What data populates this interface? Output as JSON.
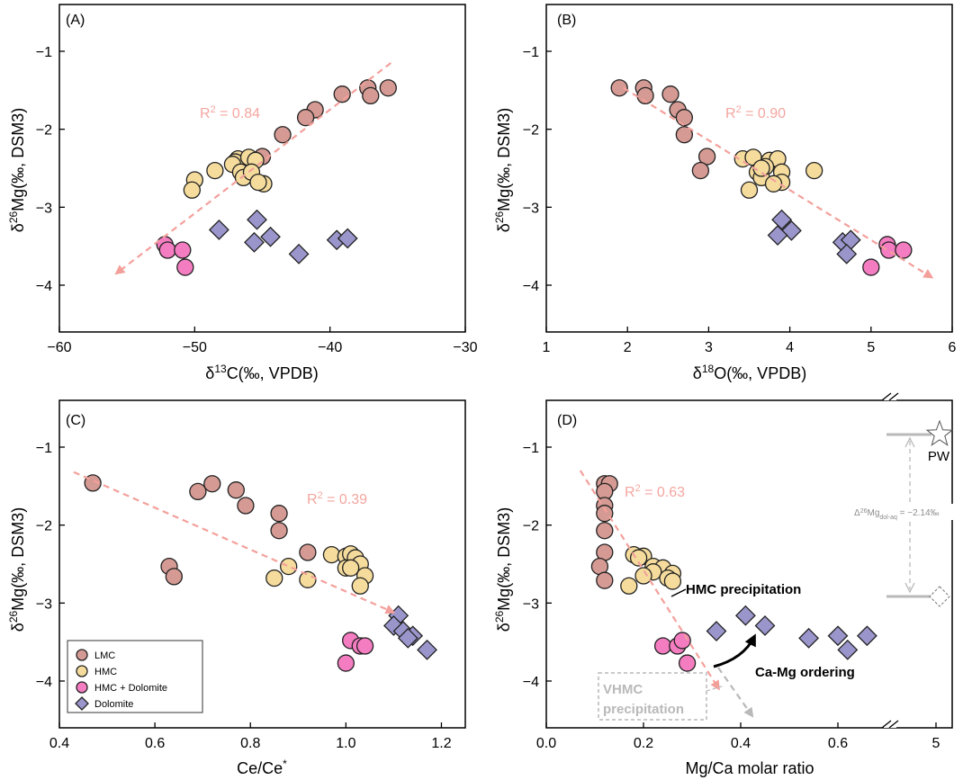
{
  "colors": {
    "LMC": "#d49a93",
    "HMC": "#f5dc9c",
    "HMC + Dolomite": "#f47dc1",
    "Dolomite": "#9a96cc",
    "trend": "#f3a09b",
    "grey": "#b9b9b9"
  },
  "legend": {
    "entries": [
      {
        "name": "LMC",
        "marker": "circle"
      },
      {
        "name": "HMC",
        "marker": "circle"
      },
      {
        "name": "HMC + Dolomite",
        "marker": "circle"
      },
      {
        "name": "Dolomite",
        "marker": "diamond"
      }
    ]
  },
  "chart_data": [
    {
      "panel": "(A)",
      "type": "scatter",
      "xlabel": "δ13C(‰, VPDB)",
      "ylabel": "δ26Mg(‰, DSM3)",
      "xlim": [
        -60,
        -30
      ],
      "ylim": [
        -4.6,
        -0.4
      ],
      "xticks": [
        -60,
        -50,
        -40,
        -30
      ],
      "yticks": [
        -4,
        -3,
        -2,
        -1
      ],
      "r2": "R2 = 0.84",
      "trend": {
        "from": [
          -35.5,
          -1.15
        ],
        "to": [
          -55.8,
          -3.85
        ],
        "arrow": "end"
      },
      "series": [
        {
          "name": "LMC",
          "points": [
            [
              -35.7,
              -1.47
            ],
            [
              -37.2,
              -1.47
            ],
            [
              -37.0,
              -1.57
            ],
            [
              -39.1,
              -1.55
            ],
            [
              -41.1,
              -1.75
            ],
            [
              -41.8,
              -1.85
            ],
            [
              -43.5,
              -2.07
            ],
            [
              -45.0,
              -2.35
            ]
          ]
        },
        {
          "name": "HMC",
          "points": [
            [
              -46.8,
              -2.38
            ],
            [
              -47.0,
              -2.42
            ],
            [
              -46.0,
              -2.36
            ],
            [
              -45.5,
              -2.4
            ],
            [
              -47.2,
              -2.45
            ],
            [
              -46.6,
              -2.55
            ],
            [
              -46.4,
              -2.62
            ],
            [
              -45.8,
              -2.55
            ],
            [
              -48.5,
              -2.53
            ],
            [
              -50.0,
              -2.65
            ],
            [
              -50.2,
              -2.78
            ],
            [
              -44.9,
              -2.7
            ],
            [
              -45.3,
              -2.68
            ]
          ]
        },
        {
          "name": "HMC + Dolomite",
          "points": [
            [
              -52.2,
              -3.48
            ],
            [
              -52.0,
              -3.55
            ],
            [
              -50.9,
              -3.55
            ],
            [
              -50.7,
              -3.77
            ]
          ]
        },
        {
          "name": "Dolomite",
          "points": [
            [
              -48.2,
              -3.29
            ],
            [
              -45.4,
              -3.16
            ],
            [
              -45.6,
              -3.45
            ],
            [
              -44.4,
              -3.38
            ],
            [
              -42.3,
              -3.6
            ],
            [
              -39.5,
              -3.42
            ],
            [
              -38.7,
              -3.4
            ]
          ]
        }
      ]
    },
    {
      "panel": "(B)",
      "type": "scatter",
      "xlabel": "δ18O(‰, VPDB)",
      "ylabel": "δ26Mg(‰, DSM3)",
      "xlim": [
        1,
        6
      ],
      "ylim": [
        -4.6,
        -0.4
      ],
      "xticks": [
        1,
        2,
        3,
        4,
        5,
        6
      ],
      "yticks": [
        -4,
        -3,
        -2,
        -1
      ],
      "r2": "R2 = 0.90",
      "trend": {
        "from": [
          1.95,
          -1.47
        ],
        "to": [
          5.75,
          -3.9
        ],
        "arrow": "end"
      },
      "series": [
        {
          "name": "LMC",
          "points": [
            [
              1.9,
              -1.47
            ],
            [
              2.2,
              -1.47
            ],
            [
              2.22,
              -1.57
            ],
            [
              2.53,
              -1.55
            ],
            [
              2.62,
              -1.75
            ],
            [
              2.7,
              -1.85
            ],
            [
              2.7,
              -2.07
            ],
            [
              2.98,
              -2.35
            ],
            [
              2.9,
              -2.53
            ]
          ]
        },
        {
          "name": "HMC",
          "points": [
            [
              3.42,
              -2.38
            ],
            [
              3.55,
              -2.36
            ],
            [
              3.75,
              -2.4
            ],
            [
              3.85,
              -2.38
            ],
            [
              3.7,
              -2.48
            ],
            [
              3.6,
              -2.55
            ],
            [
              3.65,
              -2.62
            ],
            [
              3.9,
              -2.55
            ],
            [
              4.3,
              -2.53
            ],
            [
              3.9,
              -2.68
            ],
            [
              3.8,
              -2.7
            ],
            [
              3.5,
              -2.78
            ],
            [
              3.65,
              -2.5
            ]
          ]
        },
        {
          "name": "HMC + Dolomite",
          "points": [
            [
              5.2,
              -3.48
            ],
            [
              5.22,
              -3.55
            ],
            [
              5.4,
              -3.55
            ],
            [
              5.0,
              -3.77
            ]
          ]
        },
        {
          "name": "Dolomite",
          "points": [
            [
              3.9,
              -3.16
            ],
            [
              4.02,
              -3.3
            ],
            [
              3.85,
              -3.36
            ],
            [
              4.65,
              -3.45
            ],
            [
              4.75,
              -3.42
            ],
            [
              4.7,
              -3.6
            ]
          ]
        }
      ]
    },
    {
      "panel": "(C)",
      "type": "scatter",
      "xlabel": "Ce/Ce*",
      "ylabel": "δ26Mg(‰, DSM3)",
      "xlim": [
        0.4,
        1.25
      ],
      "ylim": [
        -4.6,
        -0.4
      ],
      "xticks": [
        0.4,
        0.6,
        0.8,
        1.0,
        1.2
      ],
      "yticks": [
        -4,
        -3,
        -2,
        -1
      ],
      "r2": "R2 = 0.39",
      "trend": {
        "from": [
          0.43,
          -1.32
        ],
        "to": [
          1.1,
          -3.12
        ],
        "arrow": "end"
      },
      "series": [
        {
          "name": "LMC",
          "points": [
            [
              0.47,
              -1.46
            ],
            [
              0.69,
              -1.57
            ],
            [
              0.72,
              -1.47
            ],
            [
              0.77,
              -1.55
            ],
            [
              0.79,
              -1.75
            ],
            [
              0.86,
              -1.85
            ],
            [
              0.86,
              -2.07
            ],
            [
              0.92,
              -2.35
            ],
            [
              0.63,
              -2.53
            ],
            [
              0.64,
              -2.66
            ]
          ]
        },
        {
          "name": "HMC",
          "points": [
            [
              0.97,
              -2.38
            ],
            [
              1.0,
              -2.4
            ],
            [
              1.01,
              -2.37
            ],
            [
              1.02,
              -2.42
            ],
            [
              1.0,
              -2.55
            ],
            [
              1.03,
              -2.5
            ],
            [
              1.01,
              -2.55
            ],
            [
              1.04,
              -2.65
            ],
            [
              1.03,
              -2.78
            ],
            [
              0.92,
              -2.7
            ],
            [
              0.88,
              -2.53
            ],
            [
              0.85,
              -2.68
            ]
          ]
        },
        {
          "name": "HMC + Dolomite",
          "points": [
            [
              1.01,
              -3.48
            ],
            [
              1.03,
              -3.55
            ],
            [
              1.04,
              -3.55
            ],
            [
              1.0,
              -3.77
            ]
          ]
        },
        {
          "name": "Dolomite",
          "points": [
            [
              1.11,
              -3.16
            ],
            [
              1.1,
              -3.29
            ],
            [
              1.12,
              -3.36
            ],
            [
              1.14,
              -3.42
            ],
            [
              1.13,
              -3.45
            ],
            [
              1.17,
              -3.6
            ]
          ]
        }
      ]
    },
    {
      "panel": "(D)",
      "type": "scatter",
      "xlabel": "Mg/Ca molar ratio",
      "ylabel": "δ26Mg(‰, DSM3)",
      "xlim": [
        0.0,
        5.0
      ],
      "axis_break": [
        0.7,
        4.9
      ],
      "ylim": [
        -4.6,
        -0.4
      ],
      "xticks": [
        0.0,
        0.2,
        0.4,
        0.6,
        5
      ],
      "yticks": [
        -4,
        -3,
        -2,
        -1
      ],
      "r2": "R2 = 0.63",
      "trend": {
        "from": [
          0.07,
          -1.3
        ],
        "to": [
          0.355,
          -4.1
        ],
        "arrow": "end"
      },
      "annotations": {
        "hmc": "HMC precipitation",
        "camg": "Ca-Mg ordering",
        "vhmc_1": "VHMC",
        "vhmc_2": "precipitation",
        "pw": "PW",
        "delta_base": "Δ",
        "delta_sup": "26",
        "delta_mid": "Mg",
        "delta_sub": "dol-aq",
        "delta_val": " = −2.14‰"
      },
      "series": [
        {
          "name": "LMC",
          "points": [
            [
              0.12,
              -1.47
            ],
            [
              0.13,
              -1.47
            ],
            [
              0.12,
              -1.57
            ],
            [
              0.12,
              -1.75
            ],
            [
              0.12,
              -1.85
            ],
            [
              0.12,
              -2.07
            ],
            [
              0.12,
              -2.35
            ],
            [
              0.11,
              -2.53
            ],
            [
              0.12,
              -2.71
            ]
          ]
        },
        {
          "name": "HMC",
          "points": [
            [
              0.18,
              -2.38
            ],
            [
              0.2,
              -2.4
            ],
            [
              0.19,
              -2.42
            ],
            [
              0.22,
              -2.53
            ],
            [
              0.24,
              -2.55
            ],
            [
              0.22,
              -2.6
            ],
            [
              0.2,
              -2.65
            ],
            [
              0.26,
              -2.62
            ],
            [
              0.25,
              -2.68
            ],
            [
              0.26,
              -2.72
            ],
            [
              0.17,
              -2.78
            ]
          ]
        },
        {
          "name": "HMC + Dolomite",
          "points": [
            [
              0.24,
              -3.55
            ],
            [
              0.27,
              -3.55
            ],
            [
              0.28,
              -3.48
            ],
            [
              0.29,
              -3.77
            ]
          ]
        },
        {
          "name": "Dolomite",
          "points": [
            [
              0.35,
              -3.36
            ],
            [
              0.41,
              -3.16
            ],
            [
              0.45,
              -3.29
            ],
            [
              0.54,
              -3.45
            ],
            [
              0.6,
              -3.42
            ],
            [
              0.62,
              -3.6
            ],
            [
              0.66,
              -3.42
            ]
          ]
        }
      ]
    }
  ]
}
